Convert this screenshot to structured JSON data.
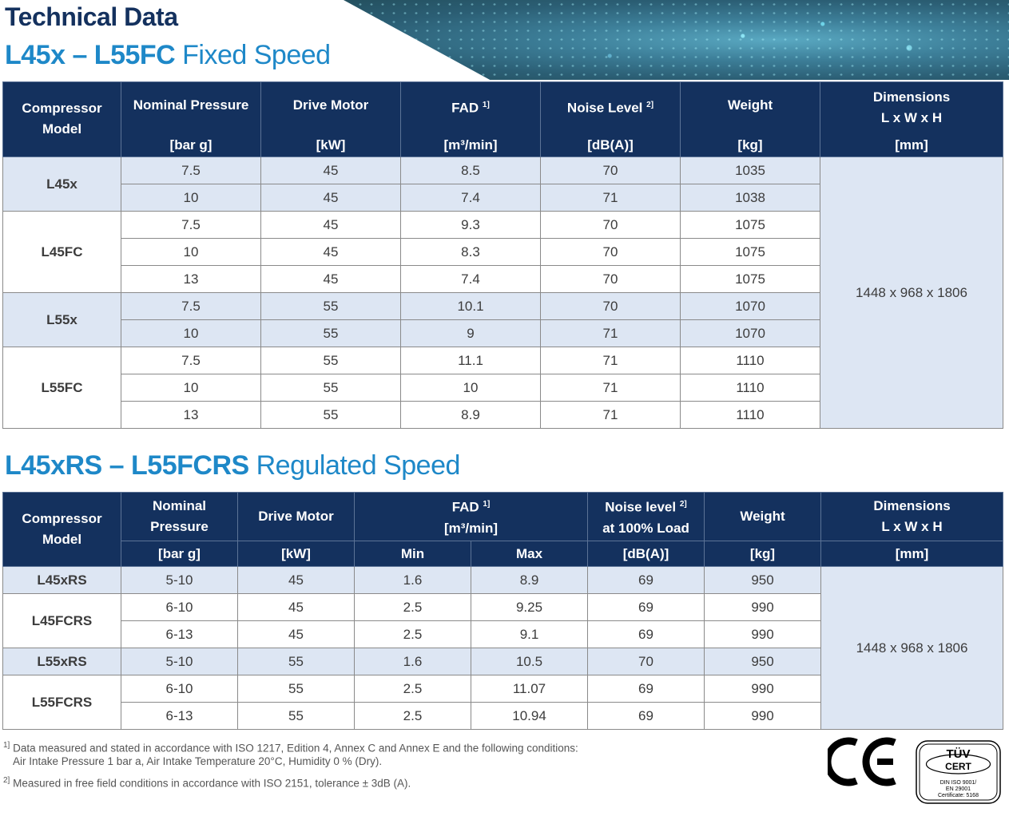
{
  "heading": "Technical Data",
  "fixed": {
    "title_bold": "L45x – L55FC",
    "title_light": " Fixed Speed",
    "headers": {
      "model": "Compressor Model",
      "pressure": "Nominal Pressure",
      "pressure_unit": "[bar g]",
      "motor": "Drive Motor",
      "motor_unit": "[kW]",
      "fad": "FAD",
      "fad_sup": "1]",
      "fad_unit": "[m³/min]",
      "noise": "Noise Level",
      "noise_sup": "2]",
      "noise_unit": "[dB(A)]",
      "weight": "Weight",
      "weight_unit": "[kg]",
      "dim": "Dimensions",
      "dim2": "L x W x H",
      "dim_unit": "[mm]"
    },
    "dimensions": "1448 x 968 x 1806",
    "rows": [
      {
        "model": "L45x",
        "pressure": "7.5",
        "motor": "45",
        "fad": "8.5",
        "noise": "70",
        "weight": "1035"
      },
      {
        "model": "",
        "pressure": "10",
        "motor": "45",
        "fad": "7.4",
        "noise": "71",
        "weight": "1038"
      },
      {
        "model": "L45FC",
        "pressure": "7.5",
        "motor": "45",
        "fad": "9.3",
        "noise": "70",
        "weight": "1075"
      },
      {
        "model": "",
        "pressure": "10",
        "motor": "45",
        "fad": "8.3",
        "noise": "70",
        "weight": "1075"
      },
      {
        "model": "",
        "pressure": "13",
        "motor": "45",
        "fad": "7.4",
        "noise": "70",
        "weight": "1075"
      },
      {
        "model": "L55x",
        "pressure": "7.5",
        "motor": "55",
        "fad": "10.1",
        "noise": "70",
        "weight": "1070"
      },
      {
        "model": "",
        "pressure": "10",
        "motor": "55",
        "fad": "9",
        "noise": "71",
        "weight": "1070"
      },
      {
        "model": "L55FC",
        "pressure": "7.5",
        "motor": "55",
        "fad": "11.1",
        "noise": "71",
        "weight": "1110"
      },
      {
        "model": "",
        "pressure": "10",
        "motor": "55",
        "fad": "10",
        "noise": "71",
        "weight": "1110"
      },
      {
        "model": "",
        "pressure": "13",
        "motor": "55",
        "fad": "8.9",
        "noise": "71",
        "weight": "1110"
      }
    ]
  },
  "regulated": {
    "title_bold": "L45xRS – L55FCRS",
    "title_light": " Regulated Speed",
    "headers": {
      "model": "Compressor Model",
      "pressure": "Nominal Pressure",
      "pressure_unit": "[bar g]",
      "motor": "Drive Motor",
      "motor_unit": "[kW]",
      "fad": "FAD",
      "fad_sup": "1]",
      "fad_unit": "[m³/min]",
      "fad_min": "Min",
      "fad_max": "Max",
      "noise": "Noise level",
      "noise_sup": "2]",
      "noise2": "at 100% Load",
      "noise_unit": "[dB(A)]",
      "weight": "Weight",
      "weight_unit": "[kg]",
      "dim": "Dimensions",
      "dim2": "L x W x H",
      "dim_unit": "[mm]"
    },
    "dimensions": "1448 x 968 x 1806",
    "rows": [
      {
        "model": "L45xRS",
        "pressure": "5-10",
        "motor": "45",
        "min": "1.6",
        "max": "8.9",
        "noise": "69",
        "weight": "950"
      },
      {
        "model": "L45FCRS",
        "pressure": "6-10",
        "motor": "45",
        "min": "2.5",
        "max": "9.25",
        "noise": "69",
        "weight": "990"
      },
      {
        "model": "",
        "pressure": "6-13",
        "motor": "45",
        "min": "2.5",
        "max": "9.1",
        "noise": "69",
        "weight": "990"
      },
      {
        "model": "L55xRS",
        "pressure": "5-10",
        "motor": "55",
        "min": "1.6",
        "max": "10.5",
        "noise": "70",
        "weight": "950"
      },
      {
        "model": "L55FCRS",
        "pressure": "6-10",
        "motor": "55",
        "min": "2.5",
        "max": "11.07",
        "noise": "69",
        "weight": "990"
      },
      {
        "model": "",
        "pressure": "6-13",
        "motor": "55",
        "min": "2.5",
        "max": "10.94",
        "noise": "69",
        "weight": "990"
      }
    ]
  },
  "footnotes": {
    "f1_mark": "1]",
    "f1": "Data measured and stated in accordance with ISO 1217, Edition 4, Annex C and Annex E and the following conditions:",
    "f1b": "Air Intake Pressure 1 bar a, Air Intake Temperature 20°C, Humidity 0 % (Dry).",
    "f2_mark": "2]",
    "f2": "Measured in free field conditions in accordance with ISO 2151, tolerance ± 3dB (A)."
  },
  "logos": {
    "ce": "CE",
    "tuv_top": "TÜV",
    "tuv_cert": "CERT",
    "tuv_line1": "DIN ISO 9001/",
    "tuv_line2": "EN 29001",
    "tuv_line3": "Certificate: 5168"
  },
  "colors": {
    "header_bg": "#14315e",
    "accent_blue": "#1e88c8",
    "band": "#dde6f3"
  }
}
